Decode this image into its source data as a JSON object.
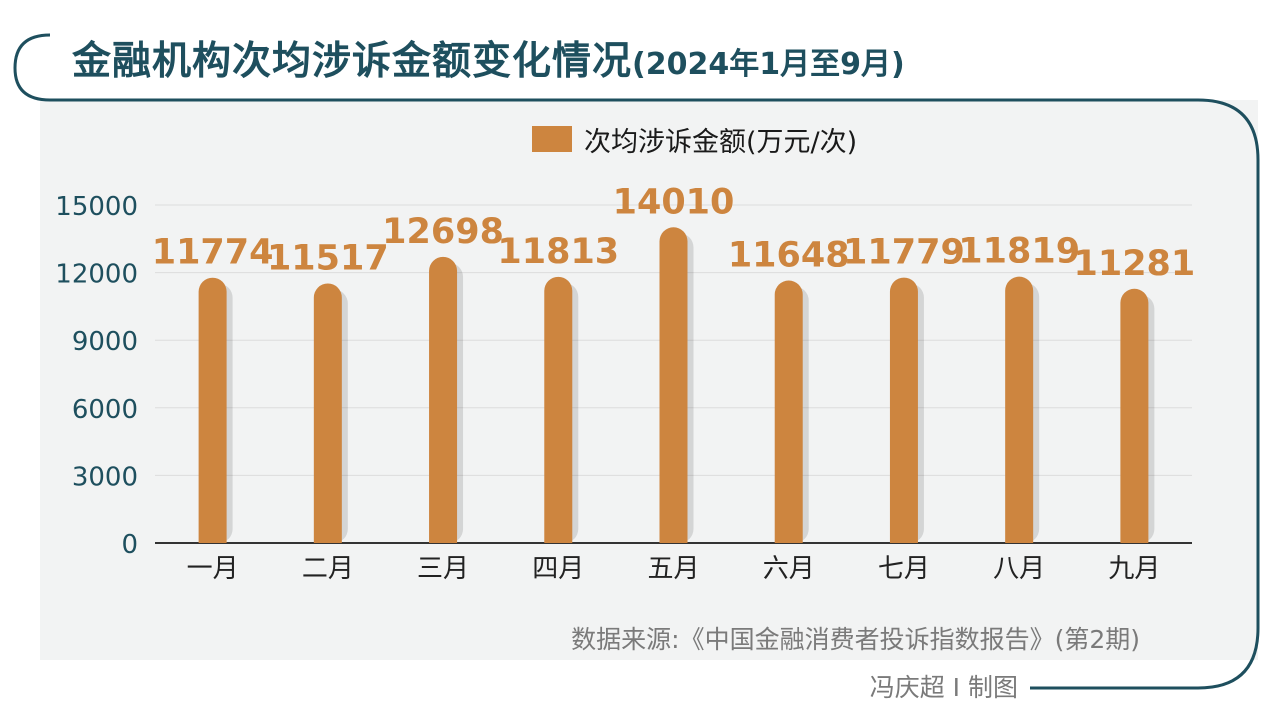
{
  "title": {
    "main": "金融机构次均涉诉金额变化情况",
    "sub": "(2024年1月至9月)"
  },
  "colors": {
    "bar": "#cd853f",
    "label": "#cd853f",
    "axis_text": "#1e4f5e",
    "frame": "#1e4f5e",
    "plot_bg": "#f2f3f3",
    "grid": "#dcdcdc"
  },
  "source": "数据来源:《中国金融消费者投诉指数报告》(第2期)",
  "credit": "冯庆超 I 制图",
  "chart_data": {
    "type": "bar",
    "categories": [
      "一月",
      "二月",
      "三月",
      "四月",
      "五月",
      "六月",
      "七月",
      "八月",
      "九月"
    ],
    "series": [
      {
        "name": "次均涉诉金额(万元/次)",
        "values": [
          11774,
          11517,
          12698,
          11813,
          14010,
          11648,
          11779,
          11819,
          11281
        ]
      }
    ],
    "ylim": [
      0,
      15000
    ],
    "yticks": [
      0,
      3000,
      6000,
      9000,
      12000,
      15000
    ],
    "grid": true,
    "legend": "top-center",
    "data_labels": true
  }
}
